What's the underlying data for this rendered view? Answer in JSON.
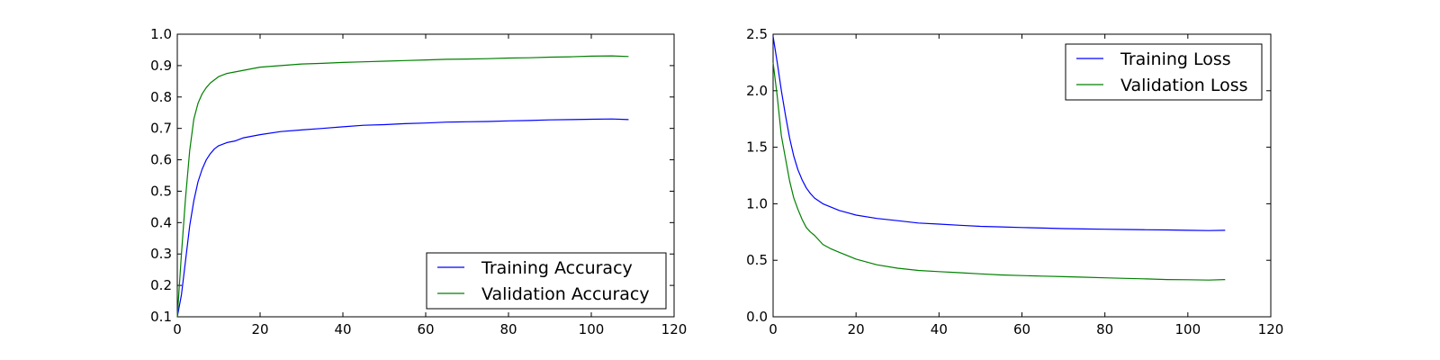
{
  "chart_data": [
    {
      "type": "line",
      "title": "",
      "xlabel": "",
      "ylabel": "",
      "xlim": [
        0,
        120
      ],
      "ylim": [
        0.1,
        1.0
      ],
      "xticks": [
        0,
        20,
        40,
        60,
        80,
        100,
        120
      ],
      "xtick_labels": [
        "0",
        "20",
        "40",
        "60",
        "80",
        "100",
        "120"
      ],
      "yticks": [
        0.1,
        0.2,
        0.3,
        0.4,
        0.5,
        0.6,
        0.7,
        0.8,
        0.9,
        1.0
      ],
      "ytick_labels": [
        "0.1",
        "0.2",
        "0.3",
        "0.4",
        "0.5",
        "0.6",
        "0.7",
        "0.8",
        "0.9",
        "1.0"
      ],
      "grid": false,
      "legend_position": "bottom-right",
      "series": [
        {
          "name": "Training Accuracy",
          "color": "#0000ff",
          "points": [
            [
              0,
              0.1
            ],
            [
              1,
              0.17
            ],
            [
              2,
              0.28
            ],
            [
              3,
              0.39
            ],
            [
              4,
              0.47
            ],
            [
              5,
              0.53
            ],
            [
              6,
              0.57
            ],
            [
              7,
              0.6
            ],
            [
              8,
              0.62
            ],
            [
              9,
              0.635
            ],
            [
              10,
              0.645
            ],
            [
              12,
              0.655
            ],
            [
              14,
              0.66
            ],
            [
              16,
              0.67
            ],
            [
              18,
              0.675
            ],
            [
              20,
              0.68
            ],
            [
              25,
              0.69
            ],
            [
              30,
              0.695
            ],
            [
              35,
              0.7
            ],
            [
              40,
              0.705
            ],
            [
              45,
              0.71
            ],
            [
              50,
              0.712
            ],
            [
              55,
              0.715
            ],
            [
              60,
              0.717
            ],
            [
              65,
              0.72
            ],
            [
              70,
              0.721
            ],
            [
              75,
              0.722
            ],
            [
              80,
              0.724
            ],
            [
              85,
              0.725
            ],
            [
              90,
              0.727
            ],
            [
              95,
              0.728
            ],
            [
              100,
              0.729
            ],
            [
              105,
              0.73
            ],
            [
              109,
              0.728
            ]
          ]
        },
        {
          "name": "Validation Accuracy",
          "color": "#008000",
          "points": [
            [
              0,
              0.1
            ],
            [
              1,
              0.3
            ],
            [
              2,
              0.48
            ],
            [
              3,
              0.63
            ],
            [
              4,
              0.73
            ],
            [
              5,
              0.78
            ],
            [
              6,
              0.81
            ],
            [
              7,
              0.83
            ],
            [
              8,
              0.845
            ],
            [
              9,
              0.855
            ],
            [
              10,
              0.865
            ],
            [
              12,
              0.875
            ],
            [
              14,
              0.88
            ],
            [
              16,
              0.885
            ],
            [
              18,
              0.89
            ],
            [
              20,
              0.895
            ],
            [
              25,
              0.9
            ],
            [
              30,
              0.905
            ],
            [
              35,
              0.907
            ],
            [
              40,
              0.91
            ],
            [
              45,
              0.912
            ],
            [
              50,
              0.914
            ],
            [
              55,
              0.916
            ],
            [
              60,
              0.918
            ],
            [
              65,
              0.92
            ],
            [
              70,
              0.921
            ],
            [
              75,
              0.922
            ],
            [
              80,
              0.924
            ],
            [
              85,
              0.925
            ],
            [
              90,
              0.927
            ],
            [
              95,
              0.928
            ],
            [
              100,
              0.93
            ],
            [
              105,
              0.931
            ],
            [
              109,
              0.929
            ]
          ]
        }
      ]
    },
    {
      "type": "line",
      "title": "",
      "xlabel": "",
      "ylabel": "",
      "xlim": [
        0,
        120
      ],
      "ylim": [
        0.0,
        2.5
      ],
      "xticks": [
        0,
        20,
        40,
        60,
        80,
        100,
        120
      ],
      "xtick_labels": [
        "0",
        "20",
        "40",
        "60",
        "80",
        "100",
        "120"
      ],
      "yticks": [
        0.0,
        0.5,
        1.0,
        1.5,
        2.0,
        2.5
      ],
      "ytick_labels": [
        "0.0",
        "0.5",
        "1.0",
        "1.5",
        "2.0",
        "2.5"
      ],
      "grid": false,
      "legend_position": "top-right",
      "series": [
        {
          "name": "Training Loss",
          "color": "#0000ff",
          "points": [
            [
              0,
              2.48
            ],
            [
              1,
              2.25
            ],
            [
              2,
              2.0
            ],
            [
              3,
              1.78
            ],
            [
              4,
              1.58
            ],
            [
              5,
              1.42
            ],
            [
              6,
              1.3
            ],
            [
              7,
              1.21
            ],
            [
              8,
              1.14
            ],
            [
              9,
              1.09
            ],
            [
              10,
              1.05
            ],
            [
              12,
              1.0
            ],
            [
              14,
              0.97
            ],
            [
              16,
              0.94
            ],
            [
              18,
              0.92
            ],
            [
              20,
              0.9
            ],
            [
              25,
              0.87
            ],
            [
              30,
              0.85
            ],
            [
              35,
              0.83
            ],
            [
              40,
              0.82
            ],
            [
              45,
              0.81
            ],
            [
              50,
              0.8
            ],
            [
              55,
              0.795
            ],
            [
              60,
              0.79
            ],
            [
              65,
              0.785
            ],
            [
              70,
              0.78
            ],
            [
              75,
              0.777
            ],
            [
              80,
              0.775
            ],
            [
              85,
              0.772
            ],
            [
              90,
              0.77
            ],
            [
              95,
              0.768
            ],
            [
              100,
              0.765
            ],
            [
              105,
              0.763
            ],
            [
              109,
              0.765
            ]
          ]
        },
        {
          "name": "Validation Loss",
          "color": "#008000",
          "points": [
            [
              0,
              2.25
            ],
            [
              1,
              1.95
            ],
            [
              2,
              1.6
            ],
            [
              3,
              1.4
            ],
            [
              4,
              1.2
            ],
            [
              5,
              1.05
            ],
            [
              6,
              0.95
            ],
            [
              7,
              0.86
            ],
            [
              8,
              0.79
            ],
            [
              9,
              0.75
            ],
            [
              10,
              0.72
            ],
            [
              12,
              0.64
            ],
            [
              14,
              0.6
            ],
            [
              16,
              0.57
            ],
            [
              18,
              0.54
            ],
            [
              20,
              0.51
            ],
            [
              25,
              0.46
            ],
            [
              30,
              0.43
            ],
            [
              35,
              0.41
            ],
            [
              40,
              0.4
            ],
            [
              45,
              0.39
            ],
            [
              50,
              0.38
            ],
            [
              55,
              0.37
            ],
            [
              60,
              0.365
            ],
            [
              65,
              0.36
            ],
            [
              70,
              0.355
            ],
            [
              75,
              0.35
            ],
            [
              80,
              0.345
            ],
            [
              85,
              0.34
            ],
            [
              90,
              0.335
            ],
            [
              95,
              0.33
            ],
            [
              100,
              0.328
            ],
            [
              105,
              0.325
            ],
            [
              109,
              0.33
            ]
          ]
        }
      ]
    }
  ]
}
